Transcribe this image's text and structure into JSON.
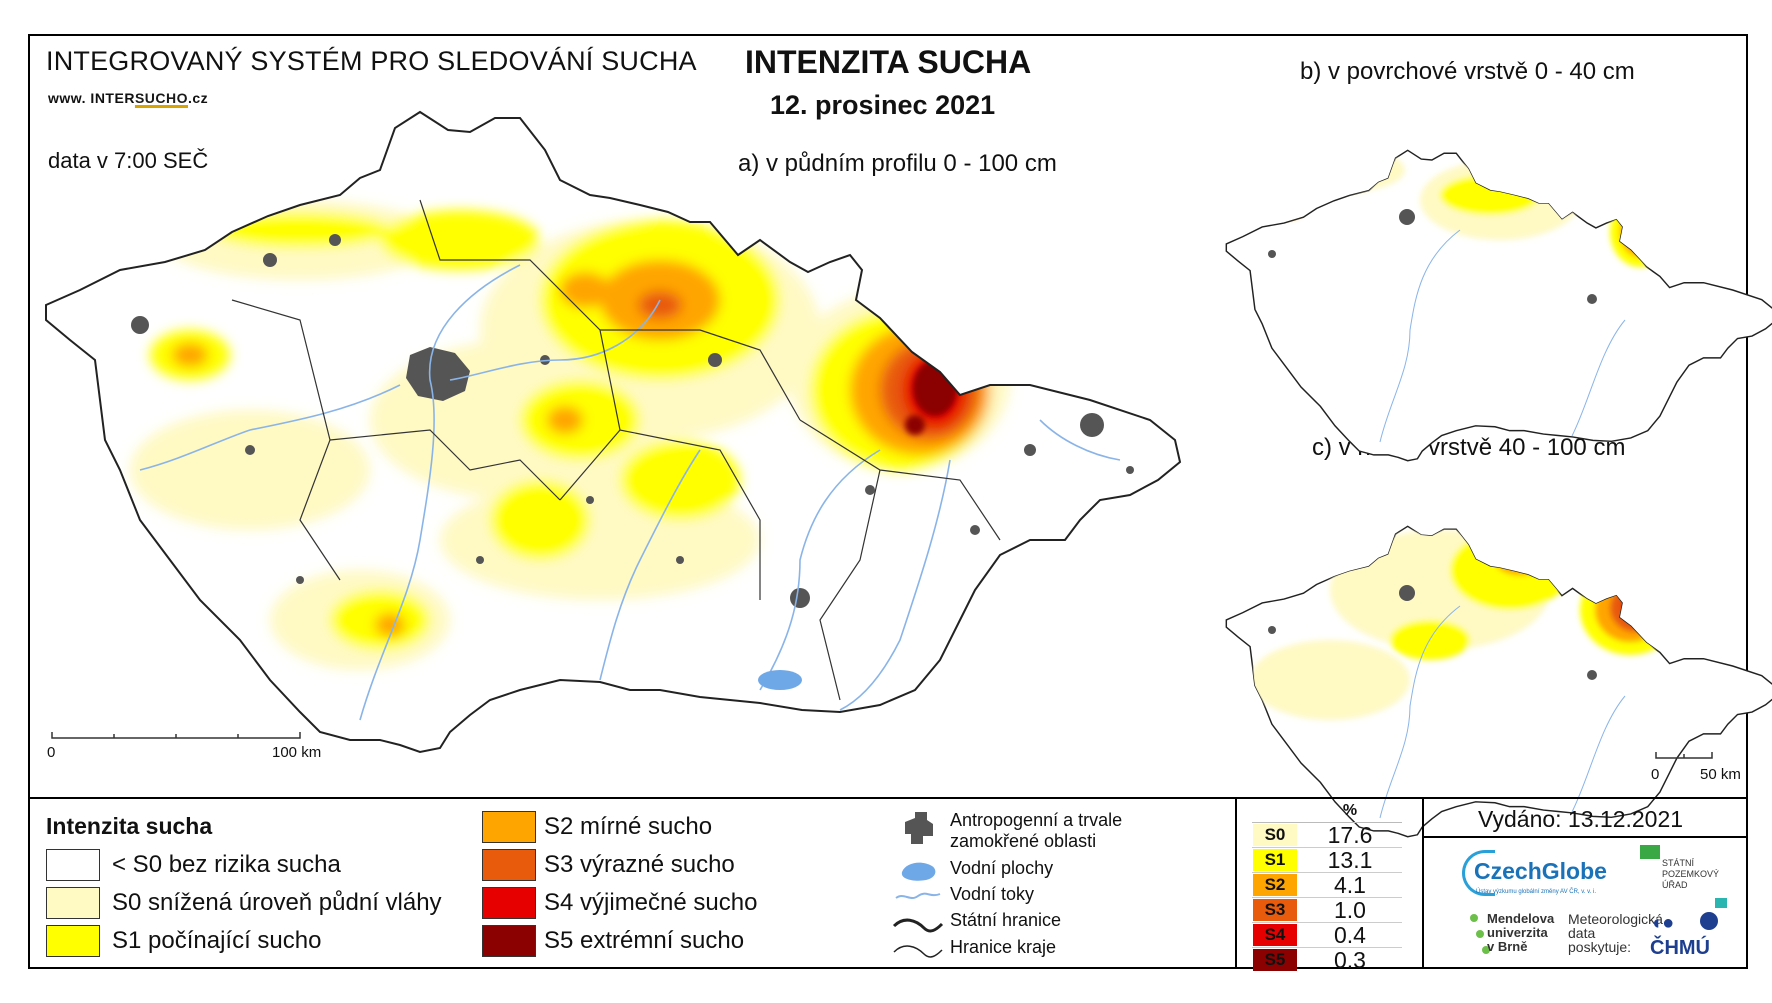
{
  "header": {
    "system_title": "INTEGROVANÝ SYSTÉM PRO SLEDOVÁNÍ SUCHA",
    "website_prefix": "www. INTER",
    "website_highlight": "SUCHO",
    "website_suffix": ".cz",
    "data_time": "data v 7:00 SEČ",
    "main_title": "INTENZITA SUCHA",
    "date": "12. prosinec 2021"
  },
  "maps": {
    "a_label": "a) v půdním profilu 0 - 100 cm",
    "b_label": "b) v povrchové vrstvě 0 - 40 cm",
    "c_label": "c) v hlubší vrstvě 40 - 100 cm",
    "scale_a": {
      "zero": "0",
      "end": "100 km"
    },
    "scale_bc": {
      "zero": "0",
      "end": "50 km"
    }
  },
  "legend": {
    "title": "Intenzita sucha",
    "classes": [
      {
        "label": "< S0 bez rizika sucha",
        "color": "#ffffff"
      },
      {
        "label": "S0 snížená úroveň půdní vláhy",
        "color": "#fff9c4"
      },
      {
        "label": "S1 počínající sucho",
        "color": "#ffff00"
      },
      {
        "label": "S2 mírné sucho",
        "color": "#ffa500"
      },
      {
        "label": "S3 výrazné sucho",
        "color": "#e85a0c"
      },
      {
        "label": "S4 výjimečné sucho",
        "color": "#e60000"
      },
      {
        "label": "S5 extrémní sucho",
        "color": "#8b0000"
      }
    ],
    "symbols": [
      {
        "label": "Antropogenní a trvale zamokřené oblasti",
        "icon": "urban-area-icon"
      },
      {
        "label": "Vodní plochy",
        "icon": "water-body-icon"
      },
      {
        "label": "Vodní toky",
        "icon": "river-icon"
      },
      {
        "label": "Státní hranice",
        "icon": "state-border-icon"
      },
      {
        "label": "Hranice kraje",
        "icon": "region-border-icon"
      }
    ]
  },
  "percentages": {
    "header": "%",
    "rows": [
      {
        "class": "S0",
        "value": "17.6",
        "color": "#fff9c4"
      },
      {
        "class": "S1",
        "value": "13.1",
        "color": "#ffff00"
      },
      {
        "class": "S2",
        "value": "4.1",
        "color": "#ffa500"
      },
      {
        "class": "S3",
        "value": "1.0",
        "color": "#e85a0c"
      },
      {
        "class": "S4",
        "value": "0.4",
        "color": "#e60000"
      },
      {
        "class": "S5",
        "value": "0.3",
        "color": "#8b0000"
      }
    ]
  },
  "footer": {
    "issued": "Vydáno: 13.12.2021",
    "logos": {
      "czechglobe": "CzechGlobe",
      "czechglobe_sub": "Ústav výzkumu globální změny AV ČR, v. v. i.",
      "spu": "STÁTNÍ POZEMKOVÝ ÚŘAD",
      "mendel": "Mendelova univerzita v Brně",
      "met_data": "Meteorologická data poskytuje:",
      "chmu": "ČHMÚ"
    }
  }
}
